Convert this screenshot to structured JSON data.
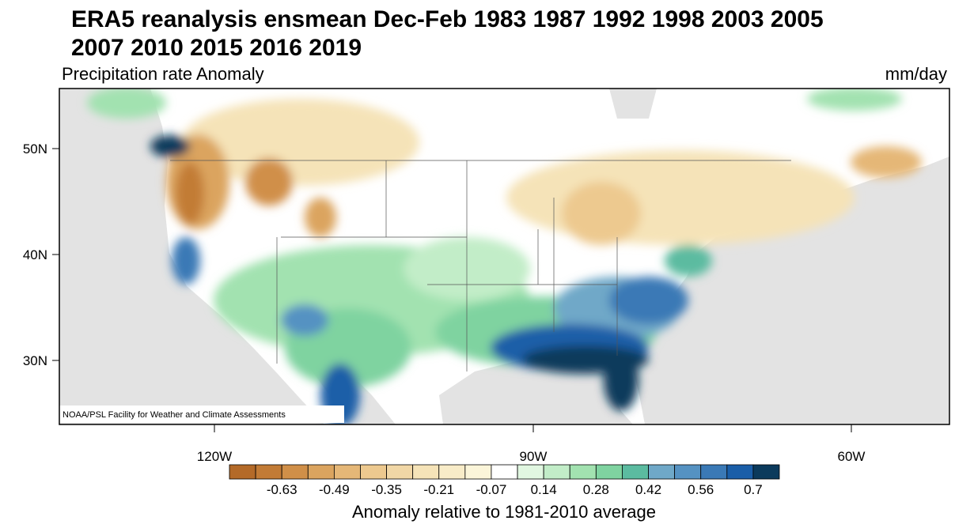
{
  "title": [
    "ERA5 reanalysis ensmean Dec-Feb 1983 1987 1992 1998 2003 2005",
    "2007 2010 2015 2016 2019"
  ],
  "subtitle": "Precipitation rate Anomaly",
  "units": "mm/day",
  "map": {
    "lat_labels": [
      "50N",
      "40N",
      "30N"
    ],
    "lon_labels": [
      "120W",
      "90W",
      "60W"
    ],
    "credit": "NOAA/PSL Facility for Weather and Climate Assessments"
  },
  "colorbar": {
    "colors": [
      "#b46a28",
      "#c27b36",
      "#d08f48",
      "#dba45f",
      "#e5b777",
      "#edc98f",
      "#f1d7a6",
      "#f5e3b8",
      "#f8ecc8",
      "#fbf5d9",
      "#ffffff",
      "#e1f7e1",
      "#c2edc8",
      "#a2e2b0",
      "#7fd3a0",
      "#5bbba0",
      "#6fa8c8",
      "#5592c2",
      "#3a79b6",
      "#1a5ea8",
      "#0b3a5c"
    ],
    "labels": [
      "-0.63",
      "-0.49",
      "-0.35",
      "-0.21",
      "-0.07",
      "0.14",
      "0.28",
      "0.42",
      "0.56",
      "0.7"
    ],
    "caption": "Anomaly relative to 1981-2010 average"
  }
}
